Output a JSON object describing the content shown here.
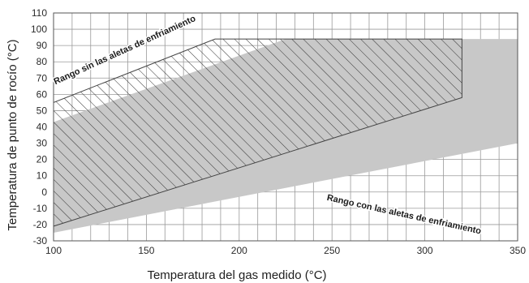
{
  "chart_data": {
    "type": "area",
    "xlabel": "Temperatura del gas medido (°C)",
    "ylabel": "Temperatura de punto de rocío (°C)",
    "xlim": [
      100,
      350
    ],
    "ylim": [
      -30,
      110
    ],
    "x_ticks": [
      100,
      150,
      200,
      250,
      300,
      350
    ],
    "y_ticks": [
      -30,
      -20,
      -10,
      0,
      10,
      20,
      30,
      40,
      50,
      60,
      70,
      80,
      90,
      100,
      110
    ],
    "grid": true,
    "series": [
      {
        "name": "Rango con las aletas de enfriamiento",
        "fill": "gray",
        "x": [
          100,
          100,
          225,
          350,
          350
        ],
        "y": [
          -25,
          43,
          94,
          94,
          30
        ]
      },
      {
        "name": "Rango sin las aletas de enfriamiento",
        "fill": "hatched",
        "x": [
          100,
          100,
          187,
          320,
          320
        ],
        "y": [
          -21,
          55,
          94,
          94,
          58
        ]
      }
    ],
    "annotations": [
      {
        "text": "Rango sin las aletas de enfriamiento",
        "x": 101,
        "y": 66,
        "angle": 24.5
      },
      {
        "text": "Rango con las aletas de enfriamiento",
        "x": 247,
        "y": -5,
        "angle": -12.4
      }
    ],
    "colors": {
      "band": "#c8c8c8",
      "grid": "#9a9a9a",
      "outline": "#444444",
      "hatch": "#333333"
    }
  }
}
